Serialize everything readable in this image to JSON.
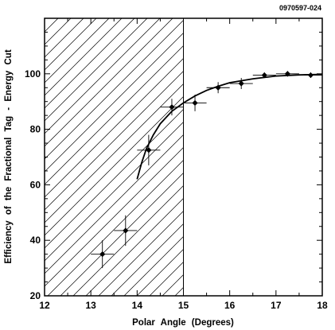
{
  "figure_id": "0970597-024",
  "chart_data": {
    "type": "scatter",
    "title": "",
    "xlabel": "Polar Angle (Degrees)",
    "ylabel": "Efficiency of the Fractional Tag - Energy Cut",
    "xlim": [
      12,
      18
    ],
    "ylim": [
      20,
      120
    ],
    "xticks": [
      12,
      13,
      14,
      15,
      16,
      17,
      18
    ],
    "yticks": [
      20,
      40,
      60,
      80,
      100
    ],
    "grid": false,
    "hatched_region": {
      "x_from": 12,
      "x_to": 15
    },
    "points": [
      {
        "x": 13.25,
        "y": 35.0,
        "xerr": 0.25,
        "yerr": 5.0
      },
      {
        "x": 13.75,
        "y": 43.5,
        "xerr": 0.25,
        "yerr": 5.5
      },
      {
        "x": 14.25,
        "y": 72.5,
        "xerr": 0.25,
        "yerr": 5.5
      },
      {
        "x": 14.75,
        "y": 88.0,
        "xerr": 0.25,
        "yerr": 3.0
      },
      {
        "x": 15.25,
        "y": 89.5,
        "xerr": 0.25,
        "yerr": 3.0
      },
      {
        "x": 15.75,
        "y": 95.0,
        "xerr": 0.25,
        "yerr": 2.0
      },
      {
        "x": 16.25,
        "y": 96.5,
        "xerr": 0.25,
        "yerr": 2.0
      },
      {
        "x": 16.75,
        "y": 99.5,
        "xerr": 0.25,
        "yerr": 1.0
      },
      {
        "x": 17.25,
        "y": 100.0,
        "xerr": 0.25,
        "yerr": 1.0
      },
      {
        "x": 17.75,
        "y": 99.5,
        "xerr": 0.25,
        "yerr": 1.0
      }
    ],
    "fit_curve": [
      {
        "x": 14.0,
        "y": 62.0
      },
      {
        "x": 14.1,
        "y": 68.0
      },
      {
        "x": 14.2,
        "y": 73.0
      },
      {
        "x": 14.35,
        "y": 78.0
      },
      {
        "x": 14.5,
        "y": 82.0
      },
      {
        "x": 14.75,
        "y": 86.5
      },
      {
        "x": 15.0,
        "y": 89.5
      },
      {
        "x": 15.25,
        "y": 92.0
      },
      {
        "x": 15.5,
        "y": 94.0
      },
      {
        "x": 15.75,
        "y": 95.5
      },
      {
        "x": 16.0,
        "y": 96.8
      },
      {
        "x": 16.5,
        "y": 98.2
      },
      {
        "x": 17.0,
        "y": 99.2
      },
      {
        "x": 17.5,
        "y": 99.6
      },
      {
        "x": 18.0,
        "y": 99.8
      }
    ]
  }
}
